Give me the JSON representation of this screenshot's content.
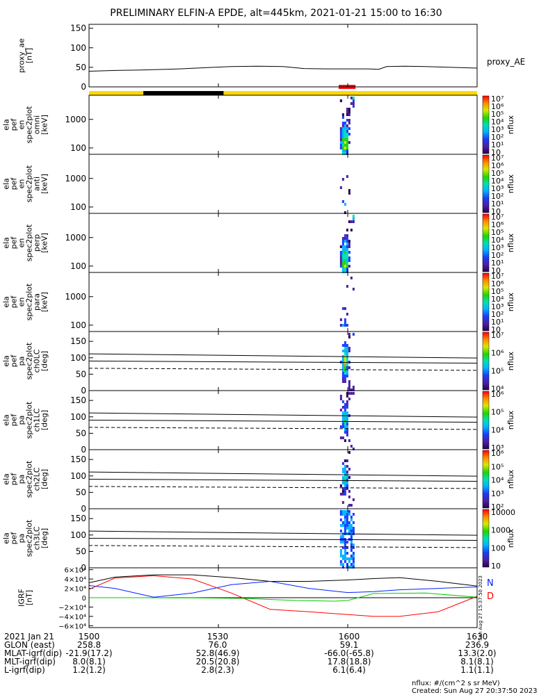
{
  "title": "PRELIMINARY ELFIN-A EPDE, alt=445km, 2021-01-21 15:00 to 16:30",
  "time_ticks": [
    "1500",
    "1530",
    "1600",
    "1630"
  ],
  "colors": {
    "proxy_line": "#000000",
    "science_zone": "#ff1111",
    "bar_yellow": "#ffd800",
    "bar_black": "#000000",
    "igrf_n": "#0020ff",
    "igrf_d": "#ff0000",
    "igrf_total": "#000000",
    "igrf_e": "#00cc00"
  },
  "chart_data": [
    {
      "type": "line",
      "panel": "proxy_ae",
      "ylabel": [
        "proxy_ae",
        "[nT]"
      ],
      "yticks": [
        "0",
        "50",
        "100",
        "150"
      ],
      "ylim": [
        0,
        160
      ],
      "series": [
        {
          "name": "proxy_AE",
          "x": [
            15.0,
            15.1,
            15.2,
            15.35,
            15.45,
            15.55,
            15.65,
            15.75,
            15.83,
            15.92,
            16.0,
            16.08,
            16.12,
            16.15,
            16.22,
            16.3,
            16.4,
            16.5
          ],
          "values": [
            40,
            42,
            43,
            46,
            49,
            52,
            53,
            52,
            47,
            46,
            46,
            46,
            45,
            52,
            53,
            52,
            50,
            48
          ]
        }
      ]
    },
    {
      "type": "heatmap",
      "panel": "ela_pef_en_spec2plot_omni",
      "ylabel": [
        "ela",
        "pef",
        "en",
        "spec2plot",
        "omni",
        "[keV]"
      ],
      "yticks": [
        "100",
        "1000"
      ],
      "y_scale": "log",
      "ylim": [
        60,
        7000
      ],
      "colorbar": {
        "label": "nflux",
        "ticks": [
          "10",
          "10¹",
          "10²",
          "10³",
          "10⁴",
          "10⁵",
          "10⁶",
          "10⁷"
        ]
      },
      "x_range": [
        15.97,
        16.02
      ],
      "peak_time": 15.99,
      "intensity": "high"
    },
    {
      "type": "heatmap",
      "panel": "ela_pef_en_spec2plot_anti",
      "ylabel": [
        "ela",
        "pef",
        "en",
        "spec2plot",
        "anti",
        "[keV]"
      ],
      "yticks": [
        "100",
        "1000"
      ],
      "y_scale": "log",
      "ylim": [
        60,
        7000
      ],
      "colorbar": {
        "label": "nflux",
        "ticks": [
          "10",
          "10¹",
          "10²",
          "10³",
          "10⁴",
          "10⁵",
          "10⁶",
          "10⁷"
        ]
      },
      "x_range": [
        15.97,
        16.02
      ],
      "peak_time": 15.99,
      "intensity": "low"
    },
    {
      "type": "heatmap",
      "panel": "ela_pef_en_spec2plot_perp",
      "ylabel": [
        "ela",
        "pef",
        "en",
        "spec2plot",
        "perp",
        "[keV]"
      ],
      "yticks": [
        "100",
        "1000"
      ],
      "y_scale": "log",
      "ylim": [
        60,
        7000
      ],
      "colorbar": {
        "label": "nflux",
        "ticks": [
          "10",
          "10¹",
          "10²",
          "10³",
          "10⁴",
          "10⁵",
          "10⁶",
          "10⁷"
        ]
      },
      "x_range": [
        15.97,
        16.02
      ],
      "peak_time": 15.99,
      "intensity": "high"
    },
    {
      "type": "heatmap",
      "panel": "ela_pef_en_spec2plot_para",
      "ylabel": [
        "ela",
        "pef",
        "en",
        "spec2plot",
        "para",
        "[keV]"
      ],
      "yticks": [
        "100",
        "1000"
      ],
      "y_scale": "log",
      "ylim": [
        60,
        7000
      ],
      "colorbar": {
        "label": "nflux",
        "ticks": [
          "10",
          "10¹",
          "10²",
          "10³",
          "10⁴",
          "10⁵",
          "10⁶",
          "10⁷"
        ]
      },
      "x_range": [
        15.97,
        16.02
      ],
      "peak_time": 15.99,
      "intensity": "low"
    },
    {
      "type": "heatmap",
      "panel": "ela_pef_pa_spec2plot_ch0LC",
      "ylabel": [
        "ela",
        "pef",
        "pa",
        "spec2plot",
        "ch0LC",
        "[deg]"
      ],
      "yticks": [
        "0",
        "50",
        "100",
        "150"
      ],
      "ylim": [
        0,
        180
      ],
      "colorbar": {
        "label": "nflux",
        "ticks": [
          "10⁴",
          "10⁵",
          "10⁶",
          "10⁷"
        ]
      },
      "lines_deg": [
        112,
        90,
        68
      ],
      "x_range": [
        15.97,
        16.02
      ],
      "peak_time": 15.99,
      "intensity": "high"
    },
    {
      "type": "heatmap",
      "panel": "ela_pef_pa_spec2plot_ch1LC",
      "ylabel": [
        "ela",
        "pef",
        "pa",
        "spec2plot",
        "ch1LC",
        "[deg]"
      ],
      "yticks": [
        "0",
        "50",
        "100",
        "150"
      ],
      "ylim": [
        0,
        180
      ],
      "colorbar": {
        "label": "nflux",
        "ticks": [
          "10³",
          "10⁴",
          "10⁵",
          "10⁶"
        ]
      },
      "lines_deg": [
        112,
        90,
        68
      ],
      "x_range": [
        15.97,
        16.02
      ],
      "peak_time": 15.99,
      "intensity": "medium"
    },
    {
      "type": "heatmap",
      "panel": "ela_pef_pa_spec2plot_ch2LC",
      "ylabel": [
        "ela",
        "pef",
        "pa",
        "spec2plot",
        "ch2LC",
        "[deg]"
      ],
      "yticks": [
        "0",
        "50",
        "100",
        "150"
      ],
      "ylim": [
        0,
        180
      ],
      "colorbar": {
        "label": "nflux",
        "ticks": [
          "10²",
          "10³",
          "10⁴",
          "10⁵",
          "10⁶"
        ]
      },
      "lines_deg": [
        112,
        90,
        68
      ],
      "x_range": [
        15.97,
        16.02
      ],
      "peak_time": 15.99,
      "intensity": "medium"
    },
    {
      "type": "heatmap",
      "panel": "ela_pef_pa_spec2plot_ch3LC",
      "ylabel": [
        "ela",
        "pef",
        "pa",
        "spec2plot",
        "ch3LC",
        "[deg]"
      ],
      "yticks": [
        "0",
        "50",
        "100",
        "150"
      ],
      "ylim": [
        0,
        180
      ],
      "colorbar": {
        "label": "nflux",
        "ticks": [
          "10",
          "100",
          "1000",
          "10000"
        ]
      },
      "lines_deg": [
        112,
        90,
        68
      ],
      "x_range": [
        15.97,
        16.02
      ],
      "peak_time": 15.99,
      "intensity": "sparse"
    },
    {
      "type": "line",
      "panel": "IGRF",
      "ylabel": [
        "IGRF",
        "[nT]"
      ],
      "yticks": [
        "−6×10⁴",
        "−4×10⁴",
        "−2×10⁴",
        "0",
        "2×10⁴",
        "4×10⁴",
        "6×10⁴"
      ],
      "ylim": [
        -64000,
        64000
      ],
      "legend": [
        "N",
        "D"
      ],
      "series": [
        {
          "name": "total",
          "x": [
            15.0,
            15.1,
            15.25,
            15.4,
            15.55,
            15.7,
            15.85,
            16.0,
            16.1,
            16.2,
            16.35,
            16.5
          ],
          "values": [
            32000,
            44000,
            49000,
            49000,
            43000,
            35000,
            35000,
            38000,
            41000,
            43000,
            35000,
            25000
          ]
        },
        {
          "name": "N",
          "x": [
            15.0,
            15.1,
            15.25,
            15.4,
            15.55,
            15.7,
            15.85,
            16.0,
            16.1,
            16.2,
            16.35,
            16.5
          ],
          "values": [
            26000,
            20000,
            1000,
            10000,
            28000,
            35000,
            20000,
            11000,
            13000,
            17000,
            20000,
            23000
          ]
        },
        {
          "name": "D",
          "x": [
            15.0,
            15.1,
            15.25,
            15.4,
            15.55,
            15.7,
            15.85,
            16.0,
            16.1,
            16.2,
            16.35,
            16.5
          ],
          "values": [
            18000,
            42000,
            47000,
            40000,
            10000,
            -25000,
            -30000,
            -36000,
            -40000,
            -40000,
            -30000,
            3000
          ]
        },
        {
          "name": "E",
          "x": [
            15.0,
            15.2,
            15.4,
            15.6,
            15.8,
            15.95,
            16.0,
            16.1,
            16.3,
            16.5
          ],
          "values": [
            0,
            0,
            -500,
            -1500,
            -6000,
            -7500,
            -6000,
            9000,
            10000,
            1000
          ]
        }
      ]
    }
  ],
  "side_labels": {
    "proxy": "proxy_AE",
    "igrf_n": "N",
    "igrf_d": "D",
    "igrf_vertical": "Sun Aug 27 15:37:50 2023"
  },
  "footer": {
    "rows": [
      {
        "label": "2021 Jan 21",
        "values": [
          "1500",
          "1530",
          "1600",
          "1630"
        ]
      },
      {
        "label": "GLON (east)",
        "values": [
          "258.8",
          "76.0",
          "59.1",
          "236.9"
        ]
      },
      {
        "label": "MLAT-igrf(dip)",
        "values": [
          "-21.9(17.2)",
          "52.8(46.9)",
          "-66.0(-65.8)",
          "13.3(2.0)"
        ]
      },
      {
        "label": "MLT-igrf(dip)",
        "values": [
          "8.0(8.1)",
          "20.5(20.8)",
          "17.8(18.8)",
          "8.1(8.1)"
        ]
      },
      {
        "label": "L-igrf(dip)",
        "values": [
          "1.2(1.2)",
          "2.8(2.3)",
          "6.1(6.4)",
          "1.1(1.1)"
        ]
      }
    ],
    "units_note": "nflux: #/(cm^2 s sr MeV)",
    "created": "Created: Sun Aug 27 20:37:50 2023"
  }
}
